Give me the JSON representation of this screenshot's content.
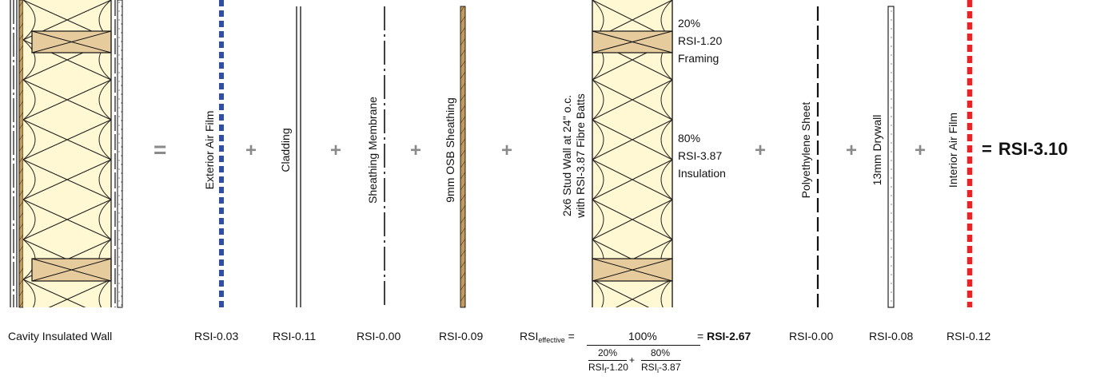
{
  "colors": {
    "insulation_fill": "#FFF8D2",
    "stud_fill": "#E6CC9C",
    "osb_fill": "#C49A5A",
    "exterior_air_film": "#2E4FA5",
    "interior_air_film": "#EE2222",
    "operator_gray": "#8A8A8A"
  },
  "components": {
    "wall": {
      "label": "Cavity Insulated Wall"
    },
    "exterior_air_film": {
      "name": "Exterior Air Film",
      "rsi": "RSI-0.03"
    },
    "cladding": {
      "name": "Cladding",
      "rsi": "RSI-0.11"
    },
    "sheathing_membrane": {
      "name": "Sheathing Membrane",
      "rsi": "RSI-0.00"
    },
    "osb_sheathing": {
      "name": "9mm OSB Sheathing",
      "rsi": "RSI-0.09"
    },
    "stud_wall": {
      "name_line1": "2x6 Stud Wall at 24\" o.c.",
      "name_line2": "with RSI-3.87 Fibre Batts",
      "framing_pct": "20%",
      "framing_rsi": "RSI-1.20",
      "framing_label": "Framing",
      "insulation_pct": "80%",
      "insulation_rsi": "RSI-3.87",
      "insulation_label": "Insulation"
    },
    "polyethylene_sheet": {
      "name": "Polyethylene Sheet",
      "rsi": "RSI-0.00"
    },
    "drywall": {
      "name": "13mm Drywall",
      "rsi": "RSI-0.08"
    },
    "interior_air_film": {
      "name": "Interior Air Film",
      "rsi": "RSI-0.12"
    }
  },
  "operators": {
    "equals": "=",
    "plus": "+"
  },
  "total": {
    "equals": "=",
    "value": "RSI-3.10"
  },
  "formula": {
    "rsi": "RSI",
    "sub_effective": "effective",
    "equals": "=",
    "numerator": "100%",
    "term1_pct": "20%",
    "term1_sub": "f",
    "term1_value": "-1.20",
    "plus": "+",
    "term2_pct": "80%",
    "term2_sub": "i",
    "term2_value": "-3.87",
    "result_equals": "=",
    "result": "RSI-2.67"
  }
}
